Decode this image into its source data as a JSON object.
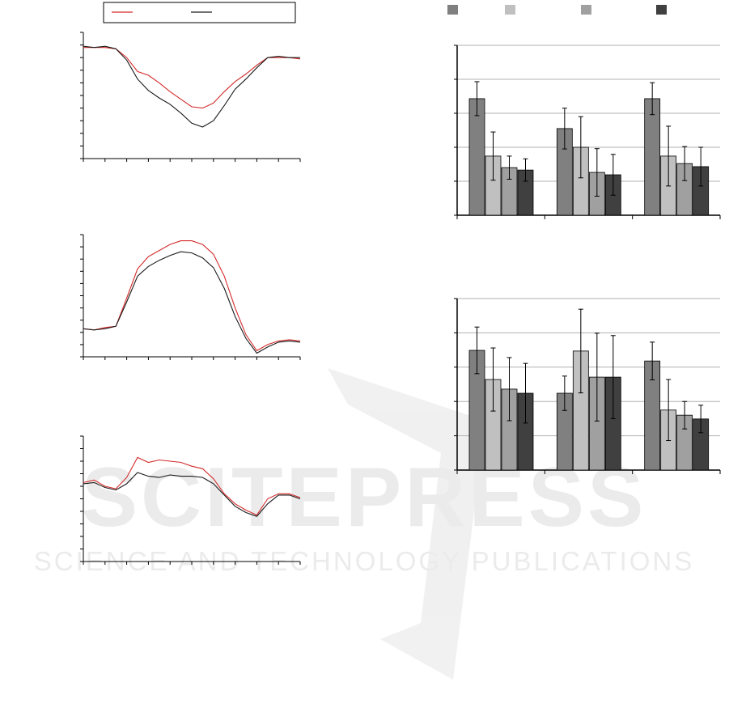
{
  "chart_data": [
    {
      "type": "line",
      "xlim": [
        0,
        10
      ],
      "xticks": [
        0,
        1,
        2,
        3,
        4,
        5,
        6,
        7,
        8,
        9,
        10
      ],
      "ylim": [
        0,
        10
      ],
      "yticks": [
        0,
        1,
        2,
        3,
        4,
        5,
        6,
        7,
        8,
        9,
        10
      ],
      "x": [
        0,
        0.5,
        1,
        1.5,
        2,
        2.5,
        3,
        3.5,
        4,
        4.5,
        5,
        5.5,
        6,
        6.5,
        7,
        7.5,
        8,
        8.5,
        9,
        9.5,
        10
      ],
      "series": [
        {
          "color": "#d42a2a",
          "values": [
            8.8,
            8.8,
            8.8,
            8.7,
            8.0,
            6.9,
            6.6,
            6.0,
            5.3,
            4.7,
            4.1,
            4.0,
            4.4,
            5.3,
            6.1,
            6.7,
            7.4,
            8.0,
            8.0,
            8.0,
            7.9
          ]
        },
        {
          "color": "#1a1a1a",
          "values": [
            8.9,
            8.8,
            8.9,
            8.7,
            7.8,
            6.3,
            5.4,
            4.8,
            4.3,
            3.6,
            2.8,
            2.5,
            3.0,
            4.2,
            5.5,
            6.3,
            7.2,
            8.0,
            8.1,
            8.0,
            8.0
          ]
        }
      ]
    },
    {
      "type": "line",
      "xlim": [
        0,
        10
      ],
      "xticks": [
        0,
        1,
        2,
        3,
        4,
        5,
        6,
        7,
        8,
        9,
        10
      ],
      "ylim": [
        0,
        10
      ],
      "yticks": [
        0,
        1,
        2,
        3,
        4,
        5,
        6,
        7,
        8,
        9,
        10
      ],
      "x": [
        0,
        0.5,
        1,
        1.5,
        2,
        2.5,
        3,
        3.5,
        4,
        4.5,
        5,
        5.5,
        6,
        6.5,
        7,
        7.5,
        8,
        8.5,
        9,
        9.5,
        10
      ],
      "series": [
        {
          "color": "#d42a2a",
          "values": [
            2.3,
            2.2,
            2.4,
            2.5,
            4.8,
            7.2,
            8.2,
            8.7,
            9.2,
            9.5,
            9.5,
            9.2,
            8.4,
            6.6,
            4.0,
            1.8,
            0.5,
            1.0,
            1.3,
            1.4,
            1.3
          ]
        },
        {
          "color": "#1a1a1a",
          "values": [
            2.3,
            2.2,
            2.3,
            2.5,
            4.5,
            6.6,
            7.4,
            7.9,
            8.3,
            8.6,
            8.5,
            8.1,
            7.3,
            5.6,
            3.3,
            1.5,
            0.3,
            0.8,
            1.2,
            1.3,
            1.2
          ]
        }
      ]
    },
    {
      "type": "line",
      "xlim": [
        0,
        10
      ],
      "xticks": [
        0,
        1,
        2,
        3,
        4,
        5,
        6,
        7,
        8,
        9,
        10
      ],
      "ylim": [
        0,
        10
      ],
      "yticks": [
        0,
        1,
        2,
        3,
        4,
        5,
        6,
        7,
        8,
        9,
        10
      ],
      "x": [
        0,
        0.5,
        1,
        1.5,
        2,
        2.5,
        3,
        3.5,
        4,
        4.5,
        5,
        5.5,
        6,
        6.5,
        7,
        7.5,
        8,
        8.5,
        9,
        9.5,
        10
      ],
      "series": [
        {
          "color": "#d42a2a",
          "values": [
            6.3,
            6.5,
            6.0,
            5.8,
            6.7,
            8.3,
            7.9,
            8.1,
            8.0,
            7.9,
            7.6,
            7.4,
            6.6,
            5.4,
            4.6,
            4.1,
            3.7,
            5.0,
            5.4,
            5.4,
            5.1
          ]
        },
        {
          "color": "#1a1a1a",
          "values": [
            6.2,
            6.3,
            5.9,
            5.7,
            6.2,
            7.1,
            6.8,
            6.7,
            6.9,
            6.8,
            6.8,
            6.7,
            6.2,
            5.3,
            4.4,
            3.9,
            3.6,
            4.6,
            5.3,
            5.3,
            5.0
          ]
        }
      ]
    },
    {
      "type": "bar",
      "categories": [
        null,
        null,
        null
      ],
      "ylim": [
        0,
        5
      ],
      "yticks": [
        0,
        1,
        2,
        3,
        4,
        5
      ],
      "grid": true,
      "series": [
        {
          "color": "#808080",
          "values": [
            3.43,
            2.55,
            3.43
          ],
          "errors": [
            0.5,
            0.6,
            0.47
          ]
        },
        {
          "color": "#c0c0c0",
          "values": [
            1.74,
            2.0,
            1.74
          ],
          "errors": [
            0.71,
            0.9,
            0.88
          ]
        },
        {
          "color": "#a0a0a0",
          "values": [
            1.4,
            1.26,
            1.52
          ],
          "errors": [
            0.34,
            0.7,
            0.5
          ]
        },
        {
          "color": "#404040",
          "values": [
            1.33,
            1.19,
            1.43
          ],
          "errors": [
            0.33,
            0.6,
            0.57
          ]
        }
      ]
    },
    {
      "type": "bar",
      "categories": [
        null,
        null,
        null
      ],
      "ylim": [
        0,
        5
      ],
      "yticks": [
        0,
        1,
        2,
        3,
        4,
        5
      ],
      "grid": true,
      "series": [
        {
          "color": "#808080",
          "values": [
            3.49,
            2.24,
            3.18
          ],
          "errors": [
            0.68,
            0.5,
            0.55
          ]
        },
        {
          "color": "#c0c0c0",
          "values": [
            2.64,
            3.47,
            1.75
          ],
          "errors": [
            0.92,
            1.22,
            0.89
          ]
        },
        {
          "color": "#a0a0a0",
          "values": [
            2.36,
            2.71,
            1.6
          ],
          "errors": [
            0.92,
            1.28,
            0.4
          ]
        },
        {
          "color": "#404040",
          "values": [
            2.24,
            2.71,
            1.49
          ],
          "errors": [
            0.87,
            1.21,
            0.4
          ]
        }
      ]
    }
  ],
  "watermark": {
    "title": "SCITEPRESS",
    "subtitle": "SCIENCE AND TECHNOLOGY PUBLICATIONS"
  }
}
